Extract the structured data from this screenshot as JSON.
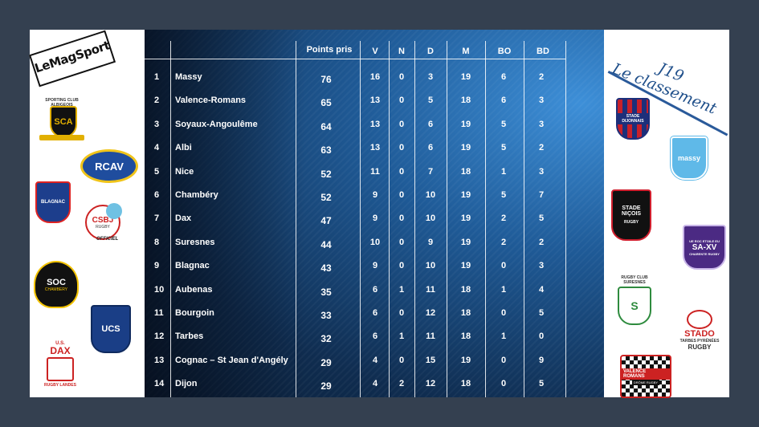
{
  "brand": "LeMagSport",
  "title": {
    "line1": "J19",
    "line2": "Le classement"
  },
  "headers": [
    "Points pris",
    "V",
    "N",
    "D",
    "M",
    "BO",
    "BD"
  ],
  "rows": [
    {
      "pos": "1",
      "team": "Massy",
      "pts": "76",
      "v": "16",
      "n": "0",
      "d": "3",
      "m": "19",
      "bo": "6",
      "bd": "2"
    },
    {
      "pos": "2",
      "team": "Valence-Romans",
      "pts": "65",
      "v": "13",
      "n": "0",
      "d": "5",
      "m": "18",
      "bo": "6",
      "bd": "3"
    },
    {
      "pos": "3",
      "team": "Soyaux-Angoulême",
      "pts": "64",
      "v": "13",
      "n": "0",
      "d": "6",
      "m": "19",
      "bo": "5",
      "bd": "3"
    },
    {
      "pos": "4",
      "team": "Albi",
      "pts": "63",
      "v": "13",
      "n": "0",
      "d": "6",
      "m": "19",
      "bo": "5",
      "bd": "2"
    },
    {
      "pos": "5",
      "team": "Nice",
      "pts": "52",
      "v": "11",
      "n": "0",
      "d": "7",
      "m": "18",
      "bo": "1",
      "bd": "3"
    },
    {
      "pos": "6",
      "team": "Chambéry",
      "pts": "52",
      "v": "9",
      "n": "0",
      "d": "10",
      "m": "19",
      "bo": "5",
      "bd": "7"
    },
    {
      "pos": "7",
      "team": "Dax",
      "pts": "47",
      "v": "9",
      "n": "0",
      "d": "10",
      "m": "19",
      "bo": "2",
      "bd": "5"
    },
    {
      "pos": "8",
      "team": "Suresnes",
      "pts": "44",
      "v": "10",
      "n": "0",
      "d": "9",
      "m": "19",
      "bo": "2",
      "bd": "2"
    },
    {
      "pos": "9",
      "team": "Blagnac",
      "pts": "43",
      "v": "9",
      "n": "0",
      "d": "10",
      "m": "19",
      "bo": "0",
      "bd": "3"
    },
    {
      "pos": "10",
      "team": "Aubenas",
      "pts": "35",
      "v": "6",
      "n": "1",
      "d": "11",
      "m": "18",
      "bo": "1",
      "bd": "4"
    },
    {
      "pos": "11",
      "team": "Bourgoin",
      "pts": "33",
      "v": "6",
      "n": "0",
      "d": "12",
      "m": "18",
      "bo": "0",
      "bd": "5"
    },
    {
      "pos": "12",
      "team": "Tarbes",
      "pts": "32",
      "v": "6",
      "n": "1",
      "d": "11",
      "m": "18",
      "bo": "1",
      "bd": "0"
    },
    {
      "pos": "13",
      "team": "Cognac – St Jean d'Angély",
      "pts": "29",
      "v": "4",
      "n": "0",
      "d": "15",
      "m": "19",
      "bo": "0",
      "bd": "9"
    },
    {
      "pos": "14",
      "team": "Dijon",
      "pts": "29",
      "v": "4",
      "n": "2",
      "d": "12",
      "m": "18",
      "bo": "0",
      "bd": "5"
    }
  ],
  "logos": {
    "sca": "SCA",
    "sca_ring": "SPORTING CLUB ALBIGEOIS",
    "rcav": "RCAV",
    "blagnac": "BLAGNAC",
    "csbj": "CSBJ",
    "csbj_sub": "RUGBY",
    "csbj_tag": "OFFICIEL",
    "soc": "SOC",
    "soc_sub": "CHAMBERY",
    "ucs": "UCS",
    "dax_us": "U.S.",
    "dax": "DAX",
    "dax_sub": "RUGBY LANDES",
    "dijon": "STADE DIJONNAIS",
    "massy": "massy",
    "nice": "STADE NIÇOIS",
    "nice_sub": "RUGBY",
    "saxv": "SA-XV",
    "saxv_top": "UE ROC ETOILE EU",
    "saxv_sub": "CHARENTE RUGBY",
    "suresnes": "RUGBY CLUB SURESNES",
    "stado": "STADO",
    "stado_sub": "TARBES PYRÉNÉES",
    "stado_rugby": "RUGBY",
    "valence": "VALENCE ROMANS",
    "valence_sub": "DRÔME RUGBY"
  }
}
